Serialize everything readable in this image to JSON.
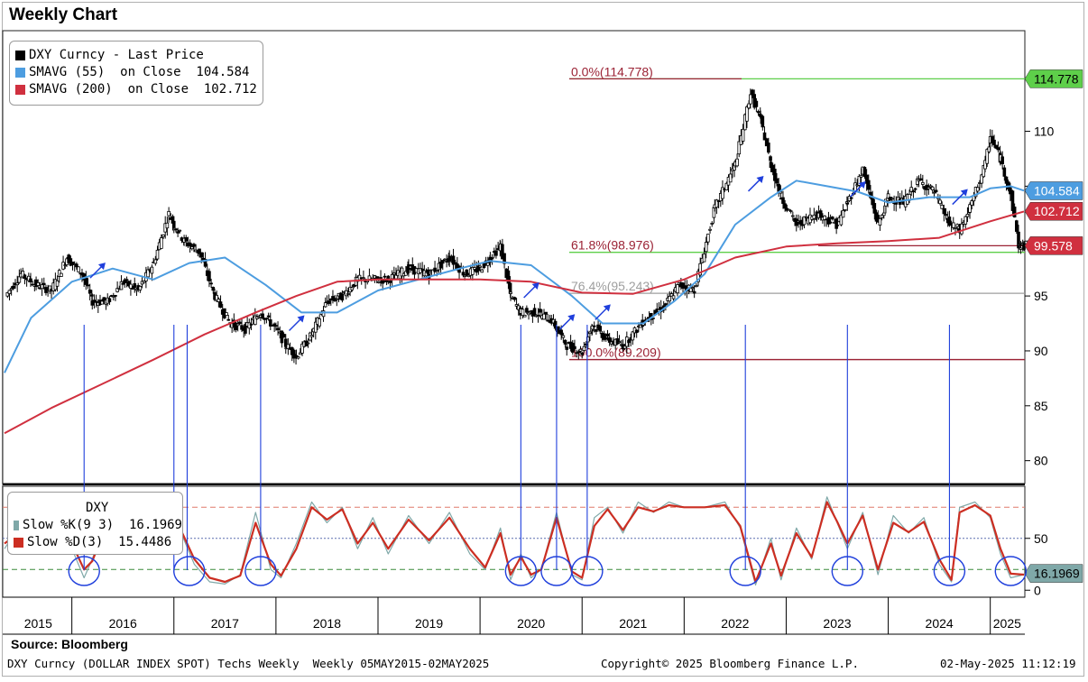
{
  "header": {
    "title": "Weekly Chart"
  },
  "source": "Source: Bloomberg",
  "footer": {
    "left": "DXY Curncy (DOLLAR INDEX SPOT) Techs Weekly  Weekly 05MAY2015-02MAY2025",
    "center": "Copyright© 2025 Bloomberg Finance L.P.",
    "right": "02-May-2025 11:12:19"
  },
  "colors": {
    "price": "#000000",
    "sma55": "#4d9de0",
    "sma200": "#d0303f",
    "fib": "#9b2335",
    "fib_line": "#5ecf4a",
    "fib_grey": "#9e9e9e",
    "annot": "#1f3fdc",
    "slowk": "#7fa8a8",
    "slowd": "#cc2e22"
  },
  "chart_data": [
    {
      "type": "line",
      "title": "Weekly Chart",
      "ylim": [
        78,
        119
      ],
      "yticks": [
        80,
        85,
        90,
        95,
        100,
        105,
        110
      ],
      "grid": false,
      "legend_position": "top-left",
      "x_years": [
        "2015",
        "2016",
        "2017",
        "2018",
        "2019",
        "2020",
        "2021",
        "2022",
        "2023",
        "2024",
        "2025"
      ],
      "x_range": [
        2015.34,
        2025.33
      ],
      "legend": [
        {
          "label": "DXY Curncy - Last Price",
          "value": "",
          "color": "#000000"
        },
        {
          "label": "SMAVG (55)  on Close",
          "value": "104.584",
          "color": "#4d9de0"
        },
        {
          "label": "SMAVG (200)  on Close",
          "value": "102.712",
          "color": "#d0303f"
        }
      ],
      "series": [
        {
          "name": "DXY Curncy - Last Price",
          "style": "candles",
          "x": [
            2015.35,
            2015.5,
            2015.65,
            2015.8,
            2015.95,
            2016.1,
            2016.2,
            2016.35,
            2016.5,
            2016.65,
            2016.8,
            2016.95,
            2017.0,
            2017.1,
            2017.25,
            2017.4,
            2017.55,
            2017.7,
            2017.85,
            2018.0,
            2018.1,
            2018.2,
            2018.35,
            2018.5,
            2018.65,
            2018.8,
            2018.95,
            2019.1,
            2019.3,
            2019.5,
            2019.7,
            2019.85,
            2020.0,
            2020.1,
            2020.2,
            2020.3,
            2020.4,
            2020.55,
            2020.7,
            2020.85,
            2021.0,
            2021.1,
            2021.25,
            2021.4,
            2021.6,
            2021.8,
            2021.95,
            2022.1,
            2022.3,
            2022.5,
            2022.65,
            2022.75,
            2022.85,
            2022.95,
            2023.1,
            2023.3,
            2023.5,
            2023.6,
            2023.75,
            2023.9,
            2024.0,
            2024.15,
            2024.3,
            2024.45,
            2024.6,
            2024.7,
            2024.8,
            2024.95,
            2025.0,
            2025.1,
            2025.2,
            2025.28,
            2025.33
          ],
          "values": [
            95,
            97,
            96,
            95.5,
            98.5,
            97,
            94.5,
            94.5,
            96.3,
            95.5,
            98,
            102.5,
            101.5,
            100,
            99,
            95,
            92.5,
            92,
            93.5,
            92,
            90.5,
            89.5,
            91.5,
            94.5,
            95,
            96.5,
            96.5,
            96.5,
            97.5,
            97,
            98.5,
            97,
            97.5,
            98.5,
            99.5,
            95,
            93.5,
            93.5,
            92.8,
            90.5,
            89.9,
            92.4,
            91,
            90.5,
            92.7,
            94,
            96,
            95.6,
            103,
            107,
            113.5,
            111,
            107,
            104,
            101.5,
            102.5,
            101.5,
            103.5,
            106.5,
            101.5,
            104,
            103.5,
            105.5,
            104.5,
            101.5,
            101,
            103,
            107,
            109.5,
            107.5,
            104.2,
            99.5,
            99.6
          ]
        },
        {
          "name": "SMAVG (55)  on Close",
          "style": "line",
          "x": [
            2015.34,
            2015.6,
            2016.0,
            2016.4,
            2016.8,
            2017.15,
            2017.5,
            2017.9,
            2018.25,
            2018.6,
            2019.0,
            2019.4,
            2019.8,
            2020.1,
            2020.5,
            2020.9,
            2021.2,
            2021.6,
            2021.9,
            2022.2,
            2022.5,
            2022.85,
            2023.1,
            2023.4,
            2023.7,
            2024.0,
            2024.4,
            2024.8,
            2025.0,
            2025.2,
            2025.33
          ],
          "values": [
            88,
            93,
            96.3,
            97.5,
            96.5,
            98,
            98.5,
            96,
            93.5,
            93.5,
            95.5,
            96.5,
            97.5,
            98.2,
            97.8,
            95,
            92.5,
            92.5,
            94.5,
            97,
            101.5,
            104,
            105.5,
            105,
            104.5,
            103.5,
            104,
            104,
            104.8,
            105,
            104.6
          ]
        },
        {
          "name": "SMAVG (200)  on Close",
          "style": "line",
          "x": [
            2015.34,
            2015.8,
            2016.3,
            2016.8,
            2017.3,
            2017.8,
            2018.2,
            2018.6,
            2019.0,
            2019.5,
            2020.0,
            2020.5,
            2021.0,
            2021.5,
            2022.0,
            2022.5,
            2023.0,
            2023.5,
            2024.0,
            2024.5,
            2025.0,
            2025.33
          ],
          "values": [
            82.5,
            84.8,
            87,
            89.2,
            91.5,
            93.5,
            95,
            96.3,
            96.5,
            96.5,
            96.5,
            96.3,
            95.3,
            95.2,
            96.5,
            98.5,
            99.5,
            99.8,
            100,
            100.3,
            101.8,
            102.7
          ]
        }
      ],
      "value_tags": [
        {
          "label": "114.778",
          "value": 114.778,
          "bg": "#5ecf4a"
        },
        {
          "label": "104.584",
          "value": 104.584,
          "bg": "#4d9de0"
        },
        {
          "label": "102.712",
          "value": 102.712,
          "bg": "#d0303f"
        },
        {
          "label": "99.578",
          "value": 99.578,
          "bg": "#d0303f"
        }
      ],
      "fibonacci": [
        {
          "label": "0.0%(114.778)",
          "value": 114.778,
          "kind": "green"
        },
        {
          "label": "61.8%(98.976)",
          "value": 98.976,
          "kind": "green"
        },
        {
          "label": "76.4%(95.243)",
          "value": 95.243,
          "kind": "grey"
        },
        {
          "label": "100.0%(89.209)",
          "value": 89.209,
          "kind": "red"
        }
      ]
    },
    {
      "type": "line",
      "title": "DXY",
      "ylim": [
        -5,
        95
      ],
      "yticks": [
        0,
        50
      ],
      "grid": false,
      "legend_position": "top-left",
      "legend": [
        {
          "label": "Slow %K(9 3)",
          "value": "16.1969",
          "color": "#7fa8a8"
        },
        {
          "label": "Slow %D(3)",
          "value": "15.4486",
          "color": "#cc2e22"
        }
      ],
      "levels": [
        80,
        50,
        20
      ],
      "value_tags": [
        {
          "label": "16.1969",
          "value": 16.1969,
          "bg": "#7fa8a8"
        }
      ],
      "series": [
        {
          "name": "Slow %K(9 3)",
          "x": [
            2015.34,
            2015.55,
            2015.7,
            2015.85,
            2016.0,
            2016.12,
            2016.2,
            2016.35,
            2016.5,
            2016.65,
            2016.8,
            2016.95,
            2017.05,
            2017.2,
            2017.35,
            2017.5,
            2017.65,
            2017.8,
            2017.95,
            2018.05,
            2018.2,
            2018.35,
            2018.5,
            2018.65,
            2018.8,
            2018.95,
            2019.1,
            2019.3,
            2019.5,
            2019.7,
            2019.9,
            2020.05,
            2020.2,
            2020.3,
            2020.4,
            2020.5,
            2020.6,
            2020.75,
            2020.9,
            2021.0,
            2021.12,
            2021.25,
            2021.4,
            2021.55,
            2021.7,
            2021.85,
            2022.0,
            2022.2,
            2022.4,
            2022.55,
            2022.7,
            2022.85,
            2022.95,
            2023.1,
            2023.25,
            2023.4,
            2023.5,
            2023.6,
            2023.75,
            2023.9,
            2024.05,
            2024.2,
            2024.35,
            2024.5,
            2024.62,
            2024.7,
            2024.85,
            2025.0,
            2025.1,
            2025.2,
            2025.33
          ],
          "values": [
            40,
            72,
            55,
            70,
            40,
            12,
            30,
            75,
            40,
            72,
            55,
            78,
            60,
            25,
            8,
            6,
            15,
            75,
            20,
            12,
            45,
            85,
            65,
            80,
            40,
            70,
            35,
            72,
            45,
            75,
            35,
            20,
            60,
            10,
            35,
            12,
            20,
            75,
            15,
            10,
            70,
            80,
            55,
            85,
            75,
            85,
            80,
            80,
            85,
            60,
            5,
            50,
            10,
            60,
            30,
            90,
            65,
            40,
            75,
            15,
            72,
            55,
            70,
            25,
            8,
            80,
            85,
            70,
            35,
            12,
            15
          ]
        },
        {
          "name": "Slow %D(3)",
          "x": [
            2015.34,
            2015.55,
            2015.7,
            2015.85,
            2016.0,
            2016.12,
            2016.2,
            2016.35,
            2016.5,
            2016.65,
            2016.8,
            2016.95,
            2017.05,
            2017.2,
            2017.35,
            2017.5,
            2017.65,
            2017.8,
            2017.95,
            2018.05,
            2018.2,
            2018.35,
            2018.5,
            2018.65,
            2018.8,
            2018.95,
            2019.1,
            2019.3,
            2019.5,
            2019.7,
            2019.9,
            2020.05,
            2020.2,
            2020.3,
            2020.4,
            2020.5,
            2020.6,
            2020.75,
            2020.9,
            2021.0,
            2021.12,
            2021.25,
            2021.4,
            2021.55,
            2021.7,
            2021.85,
            2022.0,
            2022.2,
            2022.4,
            2022.55,
            2022.7,
            2022.85,
            2022.95,
            2023.1,
            2023.25,
            2023.4,
            2023.5,
            2023.6,
            2023.75,
            2023.9,
            2024.05,
            2024.2,
            2024.35,
            2024.5,
            2024.62,
            2024.7,
            2024.85,
            2025.0,
            2025.1,
            2025.2,
            2025.33
          ],
          "values": [
            45,
            60,
            60,
            65,
            45,
            20,
            28,
            65,
            45,
            65,
            58,
            72,
            62,
            30,
            12,
            8,
            14,
            65,
            25,
            14,
            40,
            80,
            68,
            78,
            45,
            65,
            40,
            68,
            48,
            70,
            40,
            22,
            55,
            15,
            32,
            15,
            20,
            70,
            18,
            12,
            62,
            78,
            58,
            80,
            76,
            82,
            80,
            80,
            82,
            62,
            8,
            45,
            14,
            55,
            32,
            85,
            66,
            45,
            72,
            20,
            65,
            56,
            66,
            30,
            10,
            75,
            82,
            72,
            40,
            16,
            15
          ]
        }
      ],
      "circles_x": [
        2016.12,
        2017.15,
        2017.85,
        2020.4,
        2020.75,
        2021.05,
        2022.6,
        2023.6,
        2024.6,
        2025.2
      ]
    }
  ],
  "annotations": {
    "arrow_x": [
      2016.12,
      2017.0,
      2017.13,
      2017.85,
      2020.4,
      2020.75,
      2021.05,
      2022.6,
      2023.6,
      2024.6
    ],
    "up_arrows": [
      {
        "x": 2016.25,
        "y": 97.3
      },
      {
        "x": 2018.2,
        "y": 92.5
      },
      {
        "x": 2020.5,
        "y": 95.5
      },
      {
        "x": 2020.85,
        "y": 92.6
      },
      {
        "x": 2021.2,
        "y": 93.5
      },
      {
        "x": 2022.7,
        "y": 105.2
      },
      {
        "x": 2023.7,
        "y": 104.7
      },
      {
        "x": 2024.7,
        "y": 104.0
      }
    ]
  }
}
